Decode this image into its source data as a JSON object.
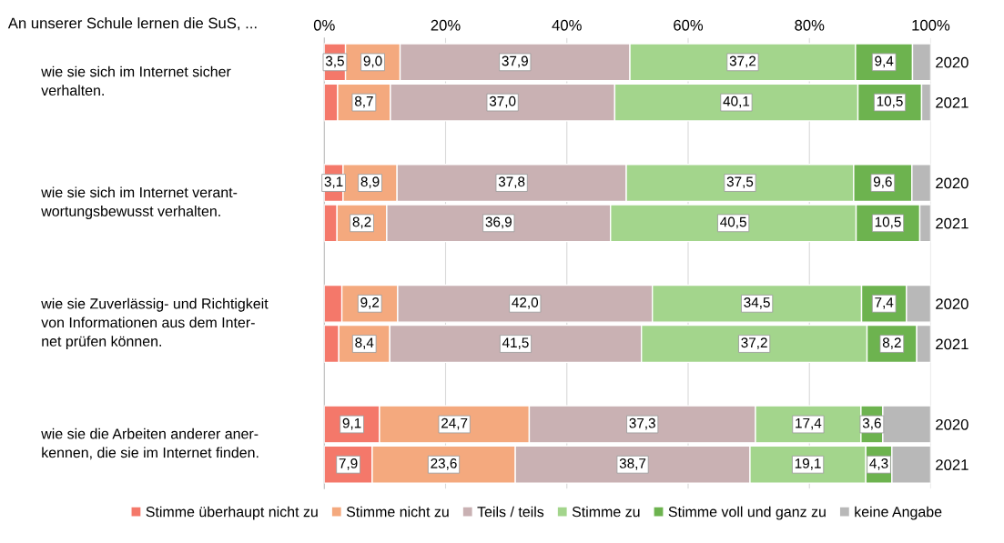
{
  "chart_data": {
    "type": "bar",
    "orientation": "horizontal",
    "stacked": true,
    "title": "An unserer Schule lernen die SuS, ...",
    "categories": [
      "2020",
      "2021",
      "2020",
      "2021",
      "2020",
      "2021",
      "2020",
      "2021"
    ],
    "annotations": [
      "wie sie sich im Internet sicher\nverhalten.",
      "wie sie sich im Internet verant-\nwortungsbewusst verhalten.",
      "wie sie Zuverlässig- und Richtigkeit\nvon Informationen aus dem Inter-\nnet prüfen können.",
      "wie sie die Arbeiten anderer aner-\nkennen, die sie im Internet finden."
    ],
    "series": [
      {
        "name": "Stimme überhaupt nicht zu",
        "color": "#f4786a",
        "values": [
          3.5,
          2.2,
          3.1,
          2.1,
          2.9,
          2.4,
          9.1,
          7.9
        ],
        "value_labels": [
          "3,5",
          null,
          "3,1",
          null,
          null,
          null,
          "9,1",
          "7,9"
        ]
      },
      {
        "name": "Stimme nicht zu",
        "color": "#f4a97e",
        "values": [
          9.0,
          8.7,
          8.9,
          8.2,
          9.2,
          8.4,
          24.7,
          23.6
        ],
        "value_labels": [
          "9,0",
          "8,7",
          "8,9",
          "8,2",
          "9,2",
          "8,4",
          "24,7",
          "23,6"
        ]
      },
      {
        "name": "Teils / teils",
        "color": "#c9b1b3",
        "values": [
          37.9,
          37.0,
          37.8,
          36.9,
          42.0,
          41.5,
          37.3,
          38.7
        ],
        "value_labels": [
          "37,9",
          "37,0",
          "37,8",
          "36,9",
          "42,0",
          "41,5",
          "37,3",
          "38,7"
        ]
      },
      {
        "name": "Stimme zu",
        "color": "#a3d58c",
        "values": [
          37.2,
          40.1,
          37.5,
          40.5,
          34.5,
          37.2,
          17.4,
          19.1
        ],
        "value_labels": [
          "37,2",
          "40,1",
          "37,5",
          "40,5",
          "34,5",
          "37,2",
          "17,4",
          "19,1"
        ]
      },
      {
        "name": "Stimme voll und ganz zu",
        "color": "#6db34f",
        "values": [
          9.4,
          10.5,
          9.6,
          10.5,
          7.4,
          8.2,
          3.6,
          4.3
        ],
        "value_labels": [
          "9,4",
          "10,5",
          "9,6",
          "10,5",
          "7,4",
          "8,2",
          "3,6",
          "4,3"
        ]
      },
      {
        "name": "keine Angabe",
        "color": "#b8b8b8",
        "values": [
          3.0,
          1.5,
          3.1,
          1.8,
          4.0,
          2.3,
          7.9,
          6.4
        ]
      }
    ],
    "xlim": [
      0,
      100
    ],
    "xticks": [
      {
        "value": 0,
        "label": "0%"
      },
      {
        "value": 20,
        "label": "20%"
      },
      {
        "value": 40,
        "label": "40%"
      },
      {
        "value": 60,
        "label": "60%"
      },
      {
        "value": 80,
        "label": "80%"
      },
      {
        "value": 100,
        "label": "100%"
      }
    ],
    "grid": "x",
    "legend": "bottom"
  }
}
